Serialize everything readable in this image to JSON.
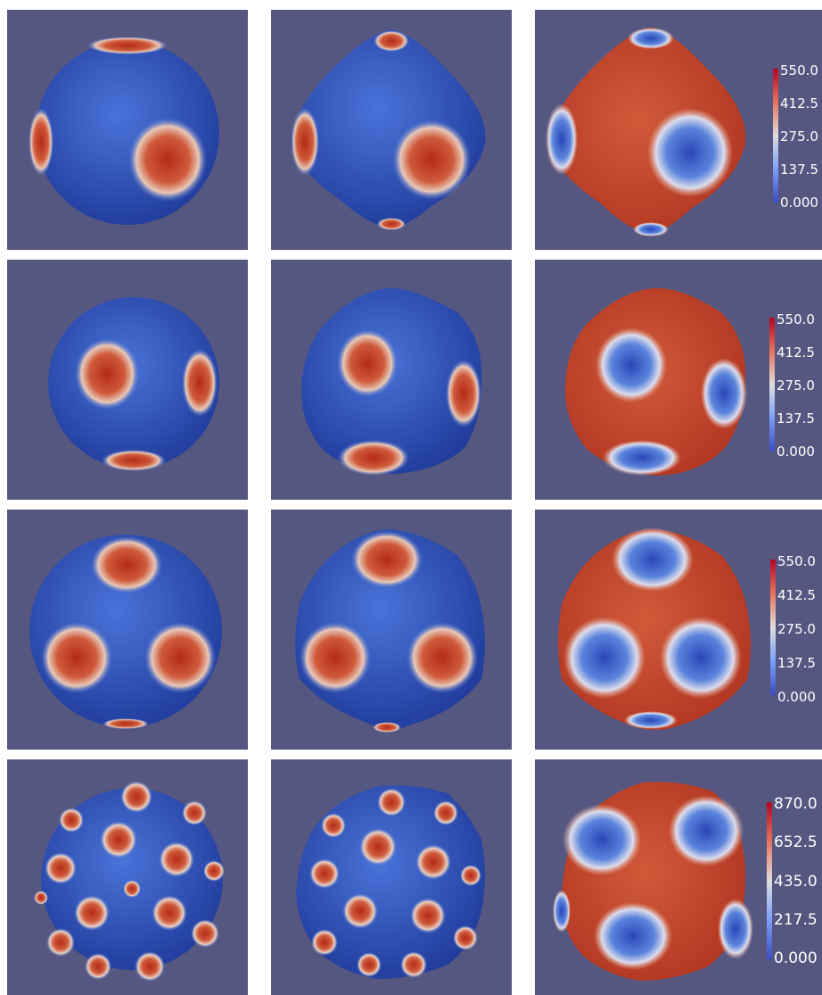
{
  "rows": [
    {
      "colorbar_ticks": [
        "550.0",
        "412.5",
        "275.0",
        "137.5",
        "0.000"
      ],
      "colorbar_range": [
        0,
        550
      ]
    },
    {
      "colorbar_ticks": [
        "550.0",
        "412.5",
        "275.0",
        "137.5",
        "0.000"
      ],
      "colorbar_range": [
        0,
        550
      ]
    },
    {
      "colorbar_ticks": [
        "550.0",
        "412.5",
        "275.0",
        "137.5",
        "0.000"
      ],
      "colorbar_range": [
        0,
        550
      ]
    },
    {
      "colorbar_ticks": [
        "870.0",
        "652.5",
        "435.0",
        "217.5",
        "0.000"
      ],
      "colorbar_range": [
        0,
        870
      ]
    }
  ],
  "colors": {
    "background": "#565780",
    "low": "#3a4fc0",
    "mid": "#e6e6e6",
    "high": "#b82a1c"
  },
  "colormap": "cool-to-warm"
}
